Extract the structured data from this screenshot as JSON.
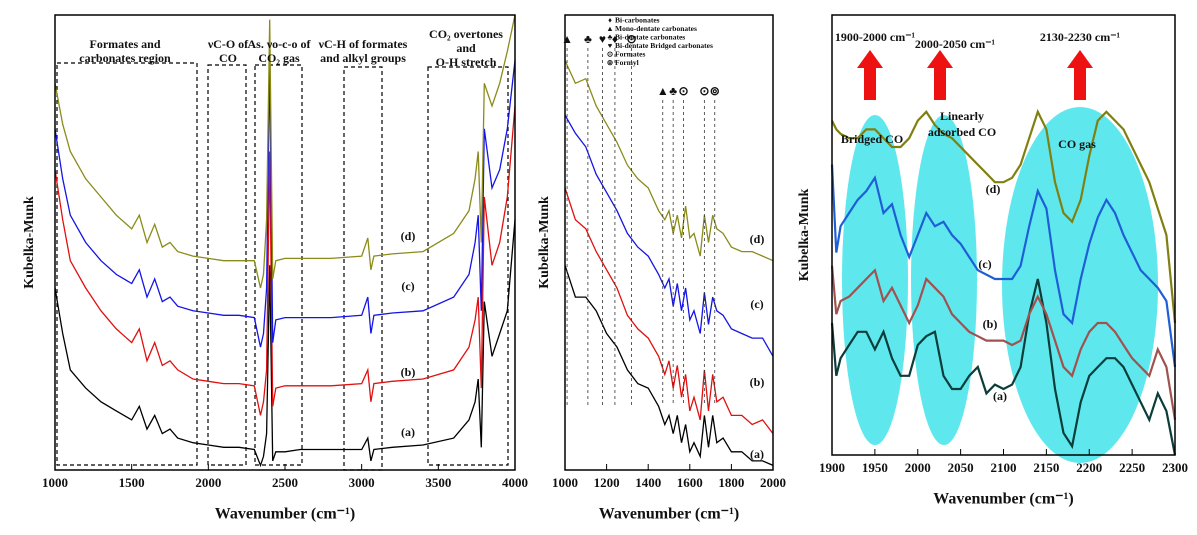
{
  "chart_data": [
    {
      "type": "line",
      "xlabel": "Wavenumber (cm⁻¹)",
      "ylabel": "Kubelka-Munk",
      "xlim": [
        1000,
        4000
      ],
      "xticks": [
        1000,
        1500,
        2000,
        2500,
        3000,
        3500,
        4000
      ],
      "ylim": [
        0,
        100
      ],
      "x": [
        1000,
        1050,
        1100,
        1200,
        1300,
        1400,
        1500,
        1550,
        1600,
        1650,
        1700,
        1750,
        1800,
        1900,
        2000,
        2100,
        2200,
        2300,
        2340,
        2360,
        2380,
        2400,
        2420,
        2440,
        2500,
        2600,
        2800,
        3000,
        3040,
        3060,
        3080,
        3200,
        3400,
        3600,
        3700,
        3740,
        3760,
        3780,
        3800,
        3850,
        3900,
        3950,
        4000
      ],
      "series": [
        {
          "name": "(a)",
          "color": "#000000",
          "values": [
            40,
            30,
            22,
            18,
            15,
            13,
            11,
            14,
            9,
            12,
            8,
            9,
            7,
            6,
            5.5,
            5,
            5,
            4.5,
            1,
            3,
            8,
            45,
            2,
            4,
            4,
            4.5,
            4.5,
            4.5,
            7,
            2,
            4.5,
            5,
            5.5,
            7,
            11,
            15,
            20,
            5,
            37,
            25,
            30,
            35,
            55
          ]
        },
        {
          "name": "(b)",
          "color": "#e01010",
          "values": [
            66,
            55,
            46,
            40,
            35,
            31,
            28,
            31,
            24,
            28,
            23,
            24,
            22,
            20,
            19.5,
            19,
            19,
            18.5,
            12,
            15,
            22,
            70,
            14,
            18,
            18.5,
            18.5,
            18.5,
            19,
            22,
            15,
            19,
            19.5,
            20,
            22,
            27,
            33,
            38,
            18,
            60,
            45,
            50,
            60,
            80
          ]
        },
        {
          "name": "(c)",
          "color": "#1414e6",
          "values": [
            75,
            64,
            56,
            50,
            46,
            43,
            41,
            44,
            38,
            42,
            37,
            38,
            36,
            35,
            34.5,
            34,
            34,
            33.5,
            27,
            30,
            40,
            90,
            28,
            33,
            33.5,
            33.5,
            33.5,
            34,
            38,
            30,
            34,
            34.5,
            35,
            38,
            43,
            50,
            56,
            35,
            75,
            62,
            66,
            75,
            90
          ]
        },
        {
          "name": "(d)",
          "color": "#8b8b1a",
          "values": [
            85,
            76,
            70,
            64,
            60,
            56,
            53,
            56,
            50,
            54,
            49,
            50,
            48,
            47,
            46.5,
            46,
            46,
            46,
            40,
            43,
            55,
            99,
            42,
            46,
            46.5,
            46.5,
            46.5,
            47,
            51,
            44,
            47,
            47.5,
            48,
            52,
            57,
            64,
            70,
            50,
            85,
            80,
            85,
            92,
            100
          ]
        }
      ],
      "annotations": [
        [
          "Formates and",
          "carbonates region"
        ],
        [
          "νC-O of",
          "CO"
        ],
        [
          "As. νo-c-o of",
          "CO₂ gas"
        ],
        [
          "νC-H of formates",
          "and alkyl groups"
        ],
        [
          "CO₂ overtones",
          "and",
          "O-H stretch"
        ]
      ]
    },
    {
      "type": "line",
      "xlabel": "Wavenumber (cm⁻¹)",
      "ylabel": "Kubelka-Munk",
      "xlim": [
        1000,
        2000
      ],
      "xticks": [
        1000,
        1200,
        1400,
        1600,
        1800,
        2000
      ],
      "ylim": [
        0,
        100
      ],
      "x": [
        1000,
        1050,
        1100,
        1150,
        1200,
        1250,
        1300,
        1350,
        1400,
        1450,
        1480,
        1500,
        1520,
        1540,
        1560,
        1580,
        1600,
        1620,
        1650,
        1670,
        1690,
        1710,
        1730,
        1760,
        1800,
        1850,
        1900,
        1950,
        2000
      ],
      "series": [
        {
          "name": "(a)",
          "color": "#000000",
          "values": [
            45,
            38,
            38,
            35,
            30,
            27,
            22,
            19,
            18,
            14,
            10,
            12,
            8,
            12,
            6,
            10,
            4,
            6,
            3,
            12,
            5,
            12,
            6,
            7,
            4,
            4,
            2,
            2,
            1
          ]
        },
        {
          "name": "(b)",
          "color": "#e01010",
          "values": [
            62,
            55,
            53,
            48,
            44,
            40,
            34,
            31,
            29,
            25,
            21,
            24,
            18,
            23,
            16,
            21,
            13,
            16,
            11,
            22,
            13,
            21,
            15,
            16,
            12,
            12,
            10,
            11,
            8
          ]
        },
        {
          "name": "(c)",
          "color": "#1414e6",
          "values": [
            78,
            74,
            71,
            65,
            61,
            57,
            52,
            49,
            47,
            43,
            40,
            42,
            36,
            41,
            35,
            40,
            33,
            35,
            30,
            39,
            32,
            38,
            35,
            34,
            31,
            30,
            29,
            29,
            25
          ]
        },
        {
          "name": "(d)",
          "color": "#8b8b1a",
          "values": [
            90,
            85,
            86,
            80,
            76,
            72,
            67,
            64,
            62,
            57,
            55,
            57,
            52,
            56,
            51,
            58,
            51,
            52,
            47,
            56,
            50,
            56,
            53,
            52,
            49,
            48,
            48,
            47,
            46
          ]
        }
      ],
      "legend": [
        {
          "symbol": "♦",
          "label": "Bi-carbonates"
        },
        {
          "symbol": "▲",
          "label": "Mono-dentate carbonates"
        },
        {
          "symbol": "♣",
          "label": "Bi-dentate carbonates"
        },
        {
          "symbol": "♥",
          "label": "Bi-dentate Bridged carbonates"
        },
        {
          "symbol": "⊙",
          "label": "Formates"
        },
        {
          "symbol": "⊚",
          "label": "Formyl"
        }
      ],
      "markers": [
        {
          "x": 1010,
          "symbol": "▲"
        },
        {
          "x": 1110,
          "symbol": "♣"
        },
        {
          "x": 1180,
          "symbol": "♥"
        },
        {
          "x": 1240,
          "symbol": "♦"
        },
        {
          "x": 1320,
          "symbol": "⊙"
        },
        {
          "x": 1470,
          "symbol": "▲"
        },
        {
          "x": 1520,
          "symbol": "♣"
        },
        {
          "x": 1570,
          "symbol": "⊙"
        },
        {
          "x": 1670,
          "symbol": "⊙"
        },
        {
          "x": 1720,
          "symbol": "⊚"
        }
      ]
    },
    {
      "type": "line",
      "xlabel": "Wavenumber (cm⁻¹)",
      "ylabel": "Kubelka-Munk",
      "xlim": [
        1900,
        2300
      ],
      "xticks": [
        1900,
        1950,
        2000,
        2050,
        2100,
        2150,
        2200,
        2250,
        2300
      ],
      "ylim": [
        0,
        100
      ],
      "x": [
        1900,
        1905,
        1910,
        1920,
        1930,
        1940,
        1950,
        1960,
        1970,
        1980,
        1990,
        2000,
        2010,
        2020,
        2030,
        2040,
        2050,
        2060,
        2070,
        2080,
        2090,
        2100,
        2110,
        2120,
        2130,
        2140,
        2150,
        2160,
        2170,
        2180,
        2190,
        2200,
        2210,
        2220,
        2230,
        2240,
        2250,
        2260,
        2270,
        2280,
        2290,
        2300
      ],
      "series": [
        {
          "name": "(a)",
          "color": "#0b3d3a",
          "values": [
            30,
            18,
            22,
            25,
            28,
            28,
            24,
            28,
            22,
            18,
            18,
            25,
            27,
            28,
            18,
            15,
            15,
            18,
            20,
            14,
            16,
            15,
            16,
            20,
            32,
            40,
            30,
            15,
            5,
            2,
            12,
            18,
            20,
            22,
            22,
            20,
            16,
            12,
            8,
            14,
            10,
            0
          ]
        },
        {
          "name": "(b)",
          "color": "#a0524f",
          "values": [
            43,
            32,
            35,
            36,
            38,
            40,
            42,
            35,
            38,
            34,
            30,
            34,
            40,
            38,
            36,
            32,
            30,
            28,
            27,
            26,
            26,
            26,
            25,
            26,
            32,
            36,
            32,
            26,
            20,
            18,
            24,
            28,
            30,
            30,
            28,
            25,
            22,
            20,
            18,
            24,
            20,
            8
          ]
        },
        {
          "name": "(c)",
          "color": "#1f5fd6",
          "values": [
            66,
            46,
            52,
            55,
            58,
            60,
            63,
            55,
            57,
            50,
            45,
            50,
            55,
            52,
            53,
            50,
            48,
            45,
            42,
            41,
            40,
            40,
            40,
            43,
            52,
            60,
            56,
            42,
            32,
            30,
            40,
            48,
            54,
            58,
            55,
            50,
            46,
            42,
            40,
            38,
            35,
            20
          ]
        },
        {
          "name": "(d)",
          "color": "#808012",
          "values": [
            76,
            74,
            73,
            72,
            72,
            74,
            74,
            72,
            70,
            70,
            72,
            76,
            78,
            75,
            73,
            72,
            70,
            68,
            66,
            64,
            62,
            62,
            63,
            66,
            72,
            78,
            74,
            62,
            55,
            53,
            58,
            68,
            76,
            78,
            76,
            74,
            70,
            66,
            62,
            56,
            50,
            30
          ]
        }
      ],
      "annotations": [
        [
          "1900-2000 cm⁻¹"
        ],
        [
          "2000-2050 cm⁻¹"
        ],
        [
          "2130-2230 cm⁻¹"
        ],
        [
          "Bridged CO"
        ],
        [
          "Linearly",
          "adsorbed CO"
        ],
        [
          "CO gas"
        ]
      ]
    }
  ]
}
